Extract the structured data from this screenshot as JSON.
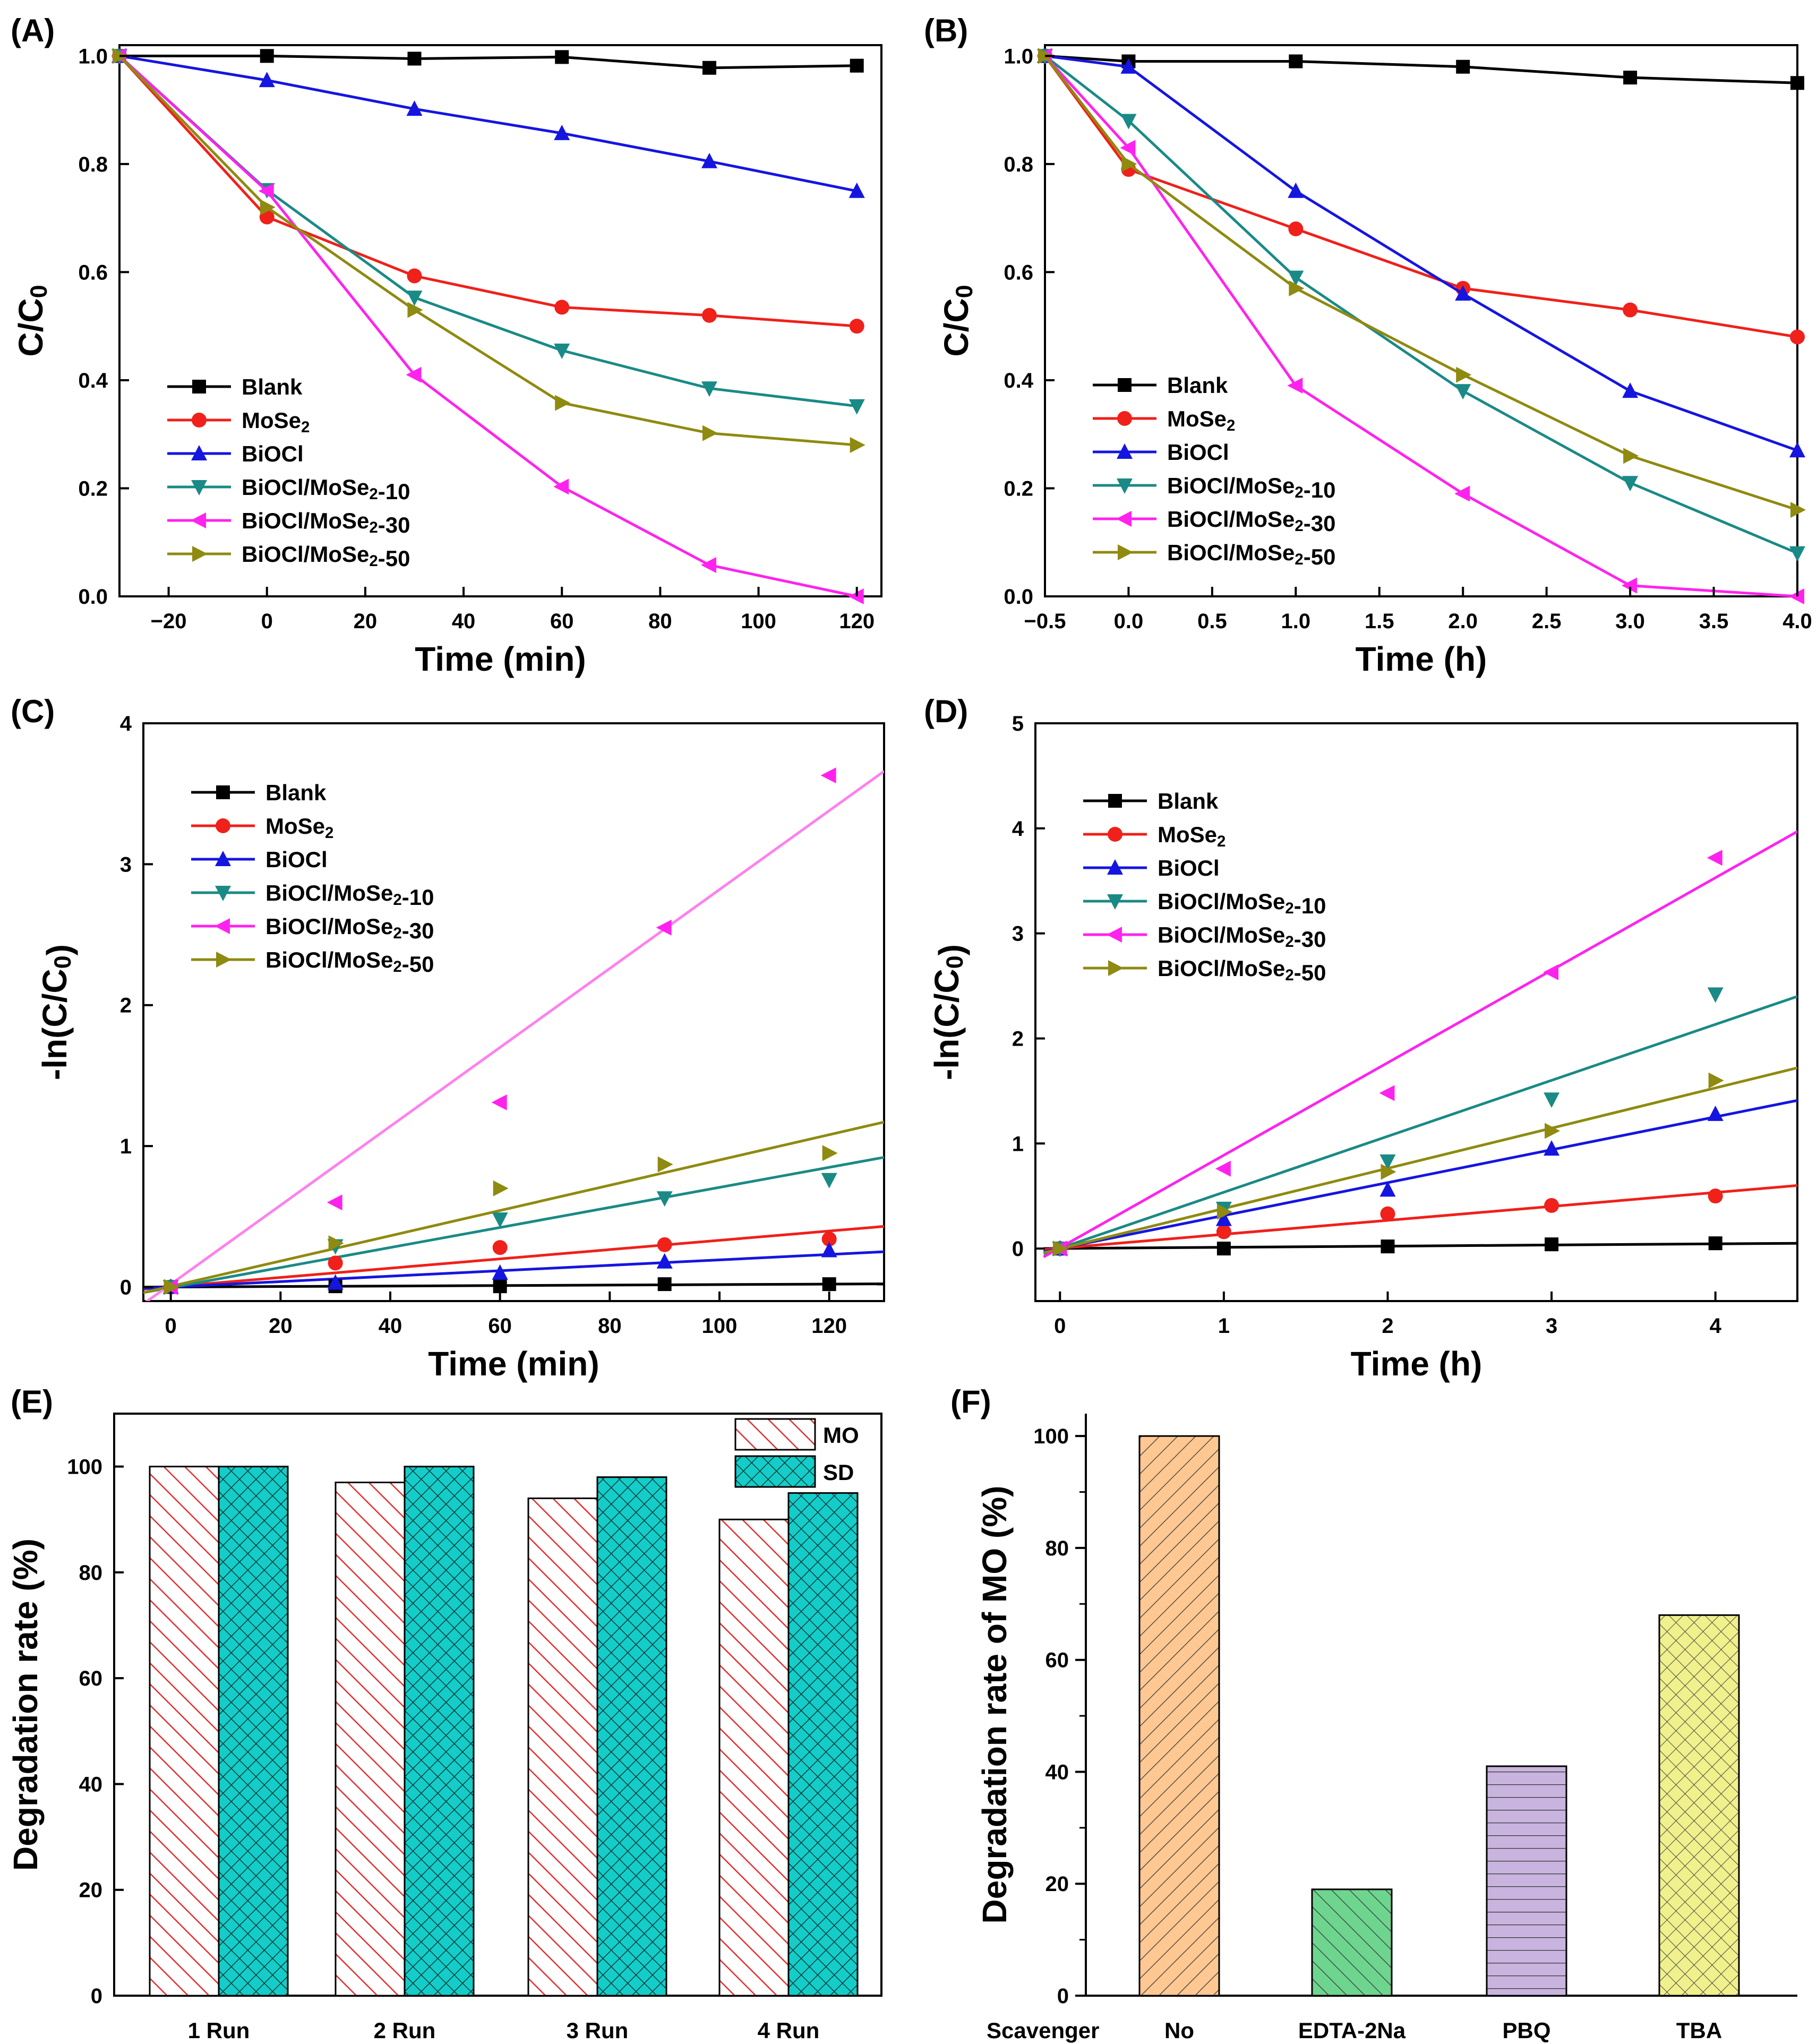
{
  "colors": {
    "black": "#000000",
    "red": "#f0201a",
    "blue": "#1515e0",
    "teal": "#1a8a86",
    "magenta": "#ff22ee",
    "olive": "#8f8a10",
    "fitPink": "#ff80ee",
    "barMO": "#e23030",
    "barSD": "#14cdc8",
    "barNo": "#ffc892",
    "barEDTA": "#6ed58f",
    "barPBQ": "#c8b4de",
    "barTBA": "#f0f08c"
  },
  "chart_data": [
    {
      "panel": "(A)",
      "type": "line",
      "xlabel": "Time (min)",
      "ylabel": "C/C0",
      "xlim": [
        -30,
        125
      ],
      "ylim": [
        0,
        1.02
      ],
      "xticks": [
        -20,
        0,
        20,
        40,
        60,
        80,
        100,
        120
      ],
      "yticks": [
        0.0,
        0.2,
        0.4,
        0.6,
        0.8,
        1.0
      ],
      "xtick_labels": [
        "−20",
        "0",
        "20",
        "40",
        "60",
        "80",
        "100",
        "120"
      ],
      "ytick_labels": [
        "0.0",
        "0.2",
        "0.4",
        "0.6",
        "0.8",
        "1.0"
      ],
      "x": [
        -30,
        0,
        30,
        60,
        90,
        120
      ],
      "series": [
        {
          "name": "Blank",
          "color": "#000000",
          "marker": "square",
          "values": [
            1.0,
            1.0,
            0.995,
            0.998,
            0.978,
            0.982
          ]
        },
        {
          "name": "MoSe2",
          "color": "#f0201a",
          "marker": "circle",
          "values": [
            1.0,
            0.702,
            0.593,
            0.535,
            0.52,
            0.5
          ]
        },
        {
          "name": "BiOCl",
          "color": "#1515e0",
          "marker": "triangle-up",
          "values": [
            1.0,
            0.955,
            0.902,
            0.857,
            0.805,
            0.75
          ]
        },
        {
          "name": "BiOCl/MoSe2-10",
          "color": "#1a8a86",
          "marker": "triangle-down",
          "values": [
            1.0,
            0.752,
            0.553,
            0.455,
            0.385,
            0.352
          ]
        },
        {
          "name": "BiOCl/MoSe2-30",
          "color": "#ff22ee",
          "marker": "triangle-left",
          "values": [
            1.0,
            0.75,
            0.41,
            0.203,
            0.058,
            0.0
          ]
        },
        {
          "name": "BiOCl/MoSe2-50",
          "color": "#8f8a10",
          "marker": "triangle-right",
          "values": [
            1.0,
            0.72,
            0.53,
            0.358,
            0.302,
            0.28
          ]
        }
      ]
    },
    {
      "panel": "(B)",
      "type": "line",
      "xlabel": "Time (h)",
      "ylabel": "C/C0",
      "xlim": [
        -0.5,
        4.0
      ],
      "ylim": [
        0,
        1.02
      ],
      "xticks": [
        -0.5,
        0.0,
        0.5,
        1.0,
        1.5,
        2.0,
        2.5,
        3.0,
        3.5,
        4.0
      ],
      "yticks": [
        0.0,
        0.2,
        0.4,
        0.6,
        0.8,
        1.0
      ],
      "xtick_labels": [
        "−0.5",
        "0.0",
        "0.5",
        "1.0",
        "1.5",
        "2.0",
        "2.5",
        "3.0",
        "3.5",
        "4.0"
      ],
      "ytick_labels": [
        "0.0",
        "0.2",
        "0.4",
        "0.6",
        "0.8",
        "1.0"
      ],
      "x": [
        -0.5,
        0,
        1,
        2,
        3,
        4
      ],
      "series": [
        {
          "name": "Blank",
          "color": "#000000",
          "marker": "square",
          "values": [
            1.0,
            0.99,
            0.99,
            0.98,
            0.96,
            0.95
          ]
        },
        {
          "name": "MoSe2",
          "color": "#f0201a",
          "marker": "circle",
          "values": [
            1.0,
            0.79,
            0.68,
            0.57,
            0.53,
            0.48
          ]
        },
        {
          "name": "BiOCl",
          "color": "#1515e0",
          "marker": "triangle-up",
          "values": [
            1.0,
            0.98,
            0.75,
            0.56,
            0.38,
            0.27
          ]
        },
        {
          "name": "BiOCl/MoSe2-10",
          "color": "#1a8a86",
          "marker": "triangle-down",
          "values": [
            1.0,
            0.88,
            0.59,
            0.38,
            0.21,
            0.08
          ]
        },
        {
          "name": "BiOCl/MoSe2-30",
          "color": "#ff22ee",
          "marker": "triangle-left",
          "values": [
            1.0,
            0.83,
            0.39,
            0.19,
            0.02,
            0.0
          ]
        },
        {
          "name": "BiOCl/MoSe2-50",
          "color": "#8f8a10",
          "marker": "triangle-right",
          "values": [
            1.0,
            0.8,
            0.57,
            0.41,
            0.26,
            0.16
          ]
        }
      ]
    },
    {
      "panel": "(C)",
      "type": "scatter",
      "xlabel": "Time (min)",
      "ylabel": "-ln(C/C0)",
      "xlim": [
        -5,
        130
      ],
      "ylim": [
        -0.1,
        4.0
      ],
      "xticks": [
        0,
        20,
        40,
        60,
        80,
        100,
        120
      ],
      "yticks": [
        0,
        1,
        2,
        3,
        4
      ],
      "xtick_labels": [
        "0",
        "20",
        "40",
        "60",
        "80",
        "100",
        "120"
      ],
      "ytick_labels": [
        "0",
        "1",
        "2",
        "3",
        "4"
      ],
      "x": [
        0,
        30,
        60,
        90,
        120
      ],
      "series": [
        {
          "name": "Blank",
          "color": "#000000",
          "fitColor": "#000000",
          "marker": "square",
          "values": [
            0.0,
            0.005,
            0.005,
            0.02,
            0.02
          ],
          "fit": [
            -5,
            -0.001,
            130,
            0.022
          ]
        },
        {
          "name": "MoSe2",
          "color": "#f0201a",
          "fitColor": "#f0201a",
          "marker": "circle",
          "values": [
            0.0,
            0.17,
            0.28,
            0.3,
            0.34
          ],
          "fit": [
            -5,
            -0.015,
            130,
            0.43
          ]
        },
        {
          "name": "BiOCl",
          "color": "#1515e0",
          "fitColor": "#1515e0",
          "marker": "triangle-up",
          "values": [
            0.0,
            0.03,
            0.1,
            0.18,
            0.26
          ],
          "fit": [
            -5,
            -0.01,
            130,
            0.25
          ]
        },
        {
          "name": "BiOCl/MoSe2-10",
          "color": "#1a8a86",
          "fitColor": "#1a8a86",
          "marker": "triangle-down",
          "values": [
            0.0,
            0.29,
            0.48,
            0.63,
            0.76
          ],
          "fit": [
            -5,
            -0.04,
            130,
            0.92
          ]
        },
        {
          "name": "BiOCl/MoSe2-30",
          "color": "#ff22ee",
          "fitColor": "#ff80ee",
          "marker": "triangle-left",
          "values": [
            0.0,
            0.6,
            1.31,
            2.55,
            3.63
          ],
          "fit": [
            -5,
            -0.12,
            130,
            3.66
          ]
        },
        {
          "name": "BiOCl/MoSe2-50",
          "color": "#8f8a10",
          "fitColor": "#8f8a10",
          "marker": "triangle-right",
          "values": [
            0.0,
            0.31,
            0.7,
            0.87,
            0.95
          ],
          "fit": [
            -5,
            -0.04,
            130,
            1.17
          ]
        }
      ]
    },
    {
      "panel": "(D)",
      "type": "scatter",
      "xlabel": "Time (h)",
      "ylabel": "-ln(C/C0)",
      "xlim": [
        -0.15,
        4.5
      ],
      "ylim": [
        -0.5,
        5.0
      ],
      "xticks": [
        0,
        1,
        2,
        3,
        4
      ],
      "yticks": [
        0,
        1,
        2,
        3,
        4,
        5
      ],
      "xtick_labels": [
        "0",
        "1",
        "2",
        "3",
        "4"
      ],
      "ytick_labels": [
        "0",
        "1",
        "2",
        "3",
        "4",
        "5"
      ],
      "x": [
        0,
        1,
        2,
        3,
        4
      ],
      "series": [
        {
          "name": "Blank",
          "color": "#000000",
          "fitColor": "#000000",
          "marker": "square",
          "values": [
            0.0,
            0.0,
            0.02,
            0.04,
            0.05
          ],
          "fit": [
            -0.1,
            0.0,
            4.5,
            0.05
          ]
        },
        {
          "name": "MoSe2",
          "color": "#f0201a",
          "fitColor": "#f0201a",
          "marker": "circle",
          "values": [
            0.0,
            0.16,
            0.33,
            0.41,
            0.5
          ],
          "fit": [
            -0.1,
            -0.01,
            4.5,
            0.6
          ]
        },
        {
          "name": "BiOCl",
          "color": "#1515e0",
          "fitColor": "#1515e0",
          "marker": "triangle-up",
          "values": [
            0.0,
            0.28,
            0.56,
            0.95,
            1.28
          ],
          "fit": [
            -0.1,
            -0.03,
            4.5,
            1.41
          ]
        },
        {
          "name": "BiOCl/MoSe2-10",
          "color": "#1a8a86",
          "fitColor": "#1a8a86",
          "marker": "triangle-down",
          "values": [
            0.0,
            0.38,
            0.83,
            1.42,
            2.42
          ],
          "fit": [
            -0.1,
            -0.05,
            4.5,
            2.4
          ]
        },
        {
          "name": "BiOCl/MoSe2-30",
          "color": "#ff22ee",
          "fitColor": "#ff22ee",
          "marker": "triangle-left",
          "values": [
            0.0,
            0.76,
            1.48,
            2.63,
            3.72
          ],
          "fit": [
            -0.1,
            -0.08,
            4.5,
            3.97
          ]
        },
        {
          "name": "BiOCl/MoSe2-50",
          "color": "#8f8a10",
          "fitColor": "#8f8a10",
          "marker": "triangle-right",
          "values": [
            0.0,
            0.35,
            0.73,
            1.12,
            1.6
          ],
          "fit": [
            -0.1,
            -0.04,
            4.5,
            1.72
          ]
        }
      ]
    },
    {
      "panel": "(E)",
      "type": "bar",
      "xlabel": "",
      "ylabel": "Degradation rate (%)",
      "ylim": [
        0,
        110
      ],
      "yticks": [
        0,
        20,
        40,
        60,
        80,
        100
      ],
      "ytick_labels": [
        "0",
        "20",
        "40",
        "60",
        "80",
        "100"
      ],
      "categories": [
        "1 Run",
        "2 Run",
        "3 Run",
        "4 Run"
      ],
      "series": [
        {
          "name": "MO",
          "color": "#e23030",
          "pattern": "diagonal-hatch",
          "values": [
            100,
            97,
            94,
            90
          ]
        },
        {
          "name": "SD",
          "color": "#14cdc8",
          "pattern": "crosshatch",
          "values": [
            100,
            100,
            98,
            95
          ]
        }
      ]
    },
    {
      "panel": "(F)",
      "type": "bar",
      "xlabel": "Scavenger",
      "ylabel": "Degradation rate of MO (%)",
      "ylim": [
        0,
        104
      ],
      "yticks": [
        0,
        20,
        40,
        60,
        80,
        100
      ],
      "ytick_labels": [
        "0",
        "20",
        "40",
        "60",
        "80",
        "100"
      ],
      "categories": [
        "No",
        "EDTA-2Na",
        "PBQ",
        "TBA"
      ],
      "values": [
        100,
        19,
        41,
        68
      ],
      "bar_colors": [
        "#ffc892",
        "#6ed58f",
        "#c8b4de",
        "#f0f08c"
      ],
      "patterns": [
        "backslash-hatch",
        "slash-hatch",
        "horizontal-lines",
        "crosshatch"
      ]
    }
  ]
}
